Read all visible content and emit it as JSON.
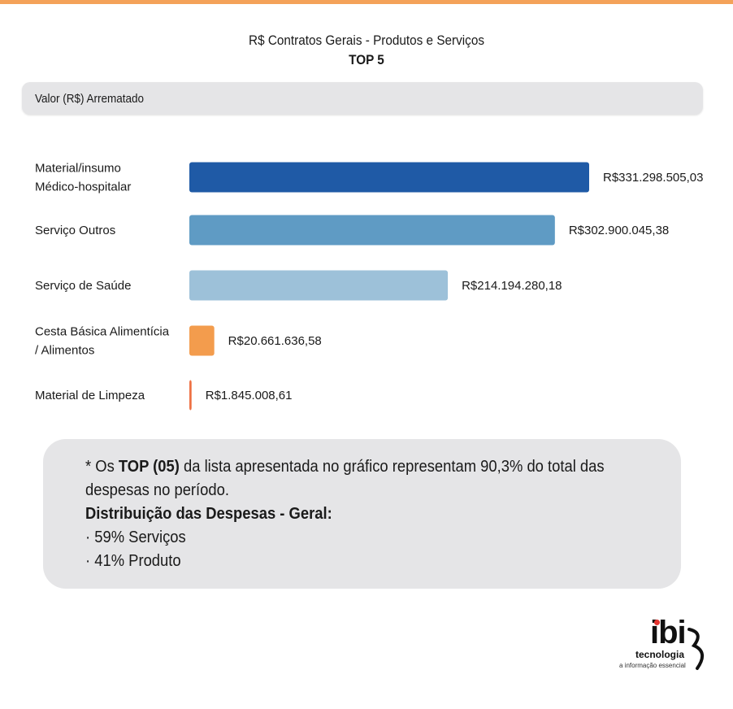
{
  "header": {
    "title": "R$ Contratos Gerais - Produtos e Serviços",
    "subtitle": "TOP 5"
  },
  "metric_label": "Valor (R$) Arrematado",
  "chart_data": {
    "type": "bar",
    "orientation": "horizontal",
    "categories": [
      [
        "Material/insumo",
        "Médico-hospitalar"
      ],
      [
        "Serviço Outros"
      ],
      [
        "Serviço de Saúde"
      ],
      [
        "Cesta Básica Alimentícia",
        "/ Alimentos"
      ],
      [
        "Material de Limpeza"
      ]
    ],
    "values": [
      331298505.03,
      302900045.38,
      214194280.18,
      20661636.58,
      1845008.61
    ],
    "value_labels": [
      "R$331.298.505,03",
      "R$302.900.045,38",
      "R$214.194.280,18",
      "R$20.661.636,58",
      "R$1.845.008,61"
    ],
    "colors": [
      "#1f5aa6",
      "#5f9bc4",
      "#9dc1d9",
      "#f39c4d",
      "#ee7144"
    ],
    "grid": false,
    "legend": "none"
  },
  "note": {
    "line1_prefix": "* Os ",
    "line1_bold": "TOP (05)",
    "line1_suffix": " da lista apresentada no gráfico representam 90,3% do total das",
    "line2": "despesas no período.",
    "heading": "Distribuição das Despesas - Geral:",
    "items": [
      "· 59% Serviços",
      "· 41% Produto"
    ]
  },
  "logo": {
    "wordmark": "ibi",
    "subtitle": "tecnologia",
    "tagline": "a informação essencial",
    "accent_color": "#e3342f"
  }
}
